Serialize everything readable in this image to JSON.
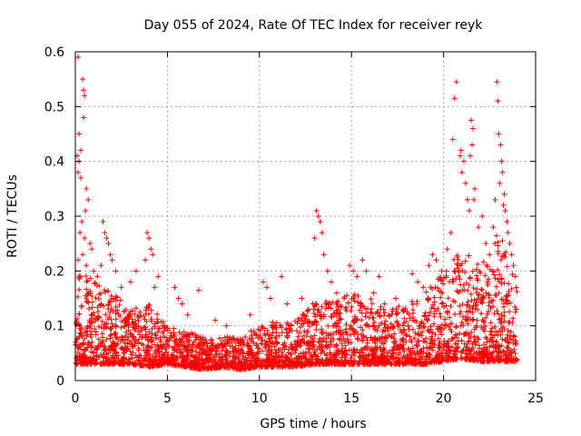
{
  "chart_data": {
    "type": "scatter",
    "title": "Day 055 of 2024, Rate Of TEC Index for receiver reyk",
    "xlabel": "GPS time / hours",
    "ylabel": "ROTI / TECUs",
    "xlim": [
      0,
      25
    ],
    "ylim": [
      0,
      0.6
    ],
    "xticks": [
      0,
      5,
      10,
      15,
      20,
      25
    ],
    "xtick_labels": [
      "0",
      "5",
      "10",
      "15",
      "20",
      "25"
    ],
    "yticks": [
      0,
      0.1,
      0.2,
      0.3,
      0.4,
      0.5,
      0.6
    ],
    "ytick_labels": [
      "0",
      "0.1",
      "0.2",
      "0.3",
      "0.4",
      "0.5",
      "0.6"
    ],
    "grid": true,
    "marker": "+",
    "color": "#ff0000",
    "series": [
      {
        "name": "ROTI",
        "points": [
          [
            0.15,
            0.59
          ],
          [
            0.4,
            0.55
          ],
          [
            0.45,
            0.53
          ],
          [
            0.5,
            0.52
          ],
          [
            0.45,
            0.48
          ],
          [
            0.2,
            0.45
          ],
          [
            0.3,
            0.42
          ],
          [
            0.1,
            0.41
          ],
          [
            0.2,
            0.4
          ],
          [
            0.15,
            0.38
          ],
          [
            0.3,
            0.37
          ],
          [
            0.6,
            0.35
          ],
          [
            0.7,
            0.33
          ],
          [
            0.55,
            0.31
          ],
          [
            0.35,
            0.29
          ],
          [
            0.25,
            0.27
          ],
          [
            0.5,
            0.26
          ],
          [
            0.8,
            0.25
          ],
          [
            0.9,
            0.24
          ],
          [
            0.4,
            0.23
          ],
          [
            0.15,
            0.22
          ],
          [
            0.6,
            0.21
          ],
          [
            1.0,
            0.2
          ],
          [
            0.3,
            0.19
          ],
          [
            1.5,
            0.29
          ],
          [
            1.6,
            0.27
          ],
          [
            1.7,
            0.26
          ],
          [
            1.8,
            0.25
          ],
          [
            1.9,
            0.23
          ],
          [
            2.0,
            0.22
          ],
          [
            1.4,
            0.21
          ],
          [
            2.2,
            0.2
          ],
          [
            1.2,
            0.19
          ],
          [
            2.5,
            0.17
          ],
          [
            3.3,
            0.2
          ],
          [
            3.0,
            0.18
          ],
          [
            3.9,
            0.27
          ],
          [
            4.0,
            0.26
          ],
          [
            4.1,
            0.24
          ],
          [
            4.2,
            0.23
          ],
          [
            3.8,
            0.22
          ],
          [
            4.5,
            0.19
          ],
          [
            4.3,
            0.17
          ],
          [
            5.4,
            0.17
          ],
          [
            5.6,
            0.15
          ],
          [
            5.8,
            0.14
          ],
          [
            6.1,
            0.12
          ],
          [
            6.7,
            0.165
          ],
          [
            7.6,
            0.11
          ],
          [
            8.2,
            0.1
          ],
          [
            9.5,
            0.12
          ],
          [
            10.2,
            0.18
          ],
          [
            10.4,
            0.17
          ],
          [
            10.6,
            0.15
          ],
          [
            11.2,
            0.19
          ],
          [
            11.5,
            0.14
          ],
          [
            12.3,
            0.15
          ],
          [
            12.9,
            0.14
          ],
          [
            13.1,
            0.31
          ],
          [
            13.2,
            0.3
          ],
          [
            13.3,
            0.29
          ],
          [
            13.4,
            0.27
          ],
          [
            13.0,
            0.26
          ],
          [
            13.5,
            0.23
          ],
          [
            13.7,
            0.2
          ],
          [
            13.9,
            0.18
          ],
          [
            14.2,
            0.16
          ],
          [
            14.6,
            0.15
          ],
          [
            14.9,
            0.21
          ],
          [
            15.1,
            0.2
          ],
          [
            15.3,
            0.19
          ],
          [
            15.6,
            0.22
          ],
          [
            15.8,
            0.2
          ],
          [
            16.2,
            0.16
          ],
          [
            16.5,
            0.19
          ],
          [
            16.8,
            0.14
          ],
          [
            17.4,
            0.15
          ],
          [
            17.8,
            0.13
          ],
          [
            18.3,
            0.195
          ],
          [
            18.6,
            0.18
          ],
          [
            18.9,
            0.17
          ],
          [
            19.2,
            0.21
          ],
          [
            19.4,
            0.23
          ],
          [
            19.6,
            0.22
          ],
          [
            19.9,
            0.2
          ],
          [
            20.2,
            0.24
          ],
          [
            20.4,
            0.27
          ],
          [
            20.5,
            0.44
          ],
          [
            20.6,
            0.515
          ],
          [
            20.7,
            0.545
          ],
          [
            20.9,
            0.41
          ],
          [
            20.95,
            0.42
          ],
          [
            21.1,
            0.4
          ],
          [
            21.0,
            0.38
          ],
          [
            21.2,
            0.36
          ],
          [
            21.3,
            0.33
          ],
          [
            21.4,
            0.31
          ],
          [
            21.5,
            0.475
          ],
          [
            21.6,
            0.46
          ],
          [
            21.55,
            0.43
          ],
          [
            21.45,
            0.41
          ],
          [
            21.7,
            0.35
          ],
          [
            21.65,
            0.33
          ],
          [
            21.9,
            0.28
          ],
          [
            22.1,
            0.3
          ],
          [
            22.3,
            0.25
          ],
          [
            22.5,
            0.23
          ],
          [
            22.7,
            0.28
          ],
          [
            22.8,
            0.33
          ],
          [
            22.9,
            0.545
          ],
          [
            22.95,
            0.51
          ],
          [
            23.0,
            0.45
          ],
          [
            23.1,
            0.43
          ],
          [
            23.15,
            0.4
          ],
          [
            23.2,
            0.38
          ],
          [
            23.05,
            0.36
          ],
          [
            23.3,
            0.34
          ],
          [
            23.25,
            0.32
          ],
          [
            23.35,
            0.31
          ],
          [
            23.45,
            0.29
          ],
          [
            23.5,
            0.27
          ],
          [
            23.6,
            0.25
          ],
          [
            23.7,
            0.23
          ],
          [
            23.8,
            0.21
          ],
          [
            23.9,
            0.19
          ],
          [
            23.95,
            0.17
          ]
        ],
        "baseline_profile": {
          "hours": [
            0,
            1,
            2,
            3,
            4,
            5,
            6,
            7,
            8,
            9,
            10,
            11,
            12,
            13,
            14,
            15,
            16,
            17,
            18,
            19,
            20,
            21,
            22,
            23,
            24
          ],
          "typical_min": [
            0.03,
            0.03,
            0.03,
            0.03,
            0.025,
            0.03,
            0.025,
            0.02,
            0.025,
            0.02,
            0.025,
            0.025,
            0.025,
            0.03,
            0.03,
            0.03,
            0.03,
            0.03,
            0.03,
            0.03,
            0.035,
            0.04,
            0.035,
            0.035,
            0.035
          ],
          "typical_max": [
            0.22,
            0.18,
            0.17,
            0.13,
            0.14,
            0.1,
            0.09,
            0.08,
            0.08,
            0.08,
            0.1,
            0.11,
            0.11,
            0.14,
            0.15,
            0.16,
            0.15,
            0.13,
            0.14,
            0.16,
            0.2,
            0.24,
            0.21,
            0.28,
            0.18
          ]
        }
      }
    ]
  }
}
